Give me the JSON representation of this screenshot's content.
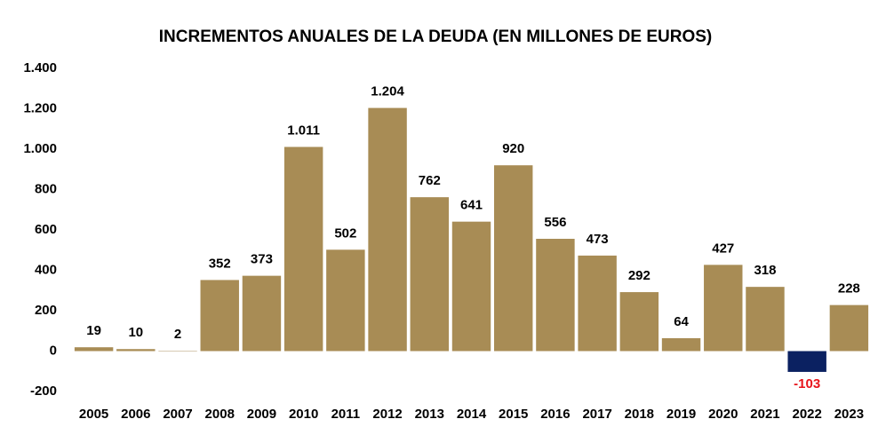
{
  "chart_data": {
    "type": "bar",
    "title": "INCREMENTOS ANUALES DE LA DEUDA (EN MILLONES DE EUROS)",
    "categories": [
      "2005",
      "2006",
      "2007",
      "2008",
      "2009",
      "2010",
      "2011",
      "2012",
      "2013",
      "2014",
      "2015",
      "2016",
      "2017",
      "2018",
      "2019",
      "2020",
      "2021",
      "2022",
      "2023"
    ],
    "values": [
      19,
      10,
      2,
      352,
      373,
      1011,
      502,
      1204,
      762,
      641,
      920,
      556,
      473,
      292,
      64,
      427,
      318,
      -103,
      228
    ],
    "value_labels": [
      "19",
      "10",
      "2",
      "352",
      "373",
      "1.011",
      "502",
      "1.204",
      "762",
      "641",
      "920",
      "556",
      "473",
      "292",
      "64",
      "427",
      "318",
      "-103",
      "228"
    ],
    "color": "#a88c55",
    "negative_color": "#0b2161",
    "negative_label_color": "#e8141b",
    "ylim": [
      -200,
      1400
    ],
    "yticks": [
      -200,
      0,
      200,
      400,
      600,
      800,
      {
        "value": 1000,
        "label": "1.000"
      },
      {
        "value": 1200,
        "label": "1.200"
      },
      {
        "value": 1400,
        "label": "1.400"
      }
    ],
    "grid": false
  }
}
